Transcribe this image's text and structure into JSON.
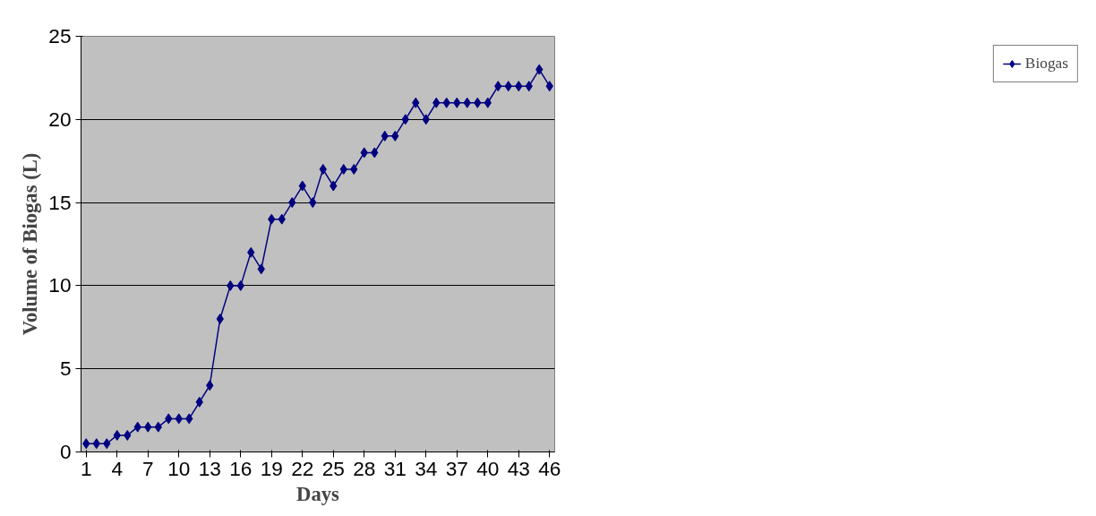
{
  "chart_data": {
    "type": "line",
    "xlabel": "Days",
    "ylabel": "Volume of Biogas (L)",
    "x": [
      1,
      2,
      3,
      4,
      5,
      6,
      7,
      8,
      9,
      10,
      11,
      12,
      13,
      14,
      15,
      16,
      17,
      18,
      19,
      20,
      21,
      22,
      23,
      24,
      25,
      26,
      27,
      28,
      29,
      30,
      31,
      32,
      33,
      34,
      35,
      36,
      37,
      38,
      39,
      40,
      41,
      42,
      43,
      44,
      45,
      46
    ],
    "series": [
      {
        "name": "Biogas",
        "color": "#000080",
        "values": [
          0.5,
          0.5,
          0.5,
          1,
          1,
          1.5,
          1.5,
          1.5,
          2,
          2,
          2,
          3,
          4,
          8,
          10,
          10,
          12,
          11,
          14,
          14,
          15,
          16,
          15,
          17,
          16,
          17,
          17,
          18,
          18,
          19,
          19,
          20,
          21,
          20,
          21,
          21,
          21,
          21,
          21,
          21,
          22,
          22,
          22,
          22,
          23,
          22
        ]
      }
    ],
    "xlim": [
      0.5,
      46.5
    ],
    "xticks": [
      1,
      4,
      7,
      10,
      13,
      16,
      19,
      22,
      25,
      28,
      31,
      34,
      37,
      40,
      43,
      46
    ],
    "ylim": [
      0,
      25
    ],
    "yticks": [
      0,
      5,
      10,
      15,
      20,
      25
    ],
    "grid": "y",
    "legend": "right",
    "marker": "diamond",
    "line_style": "solid"
  }
}
